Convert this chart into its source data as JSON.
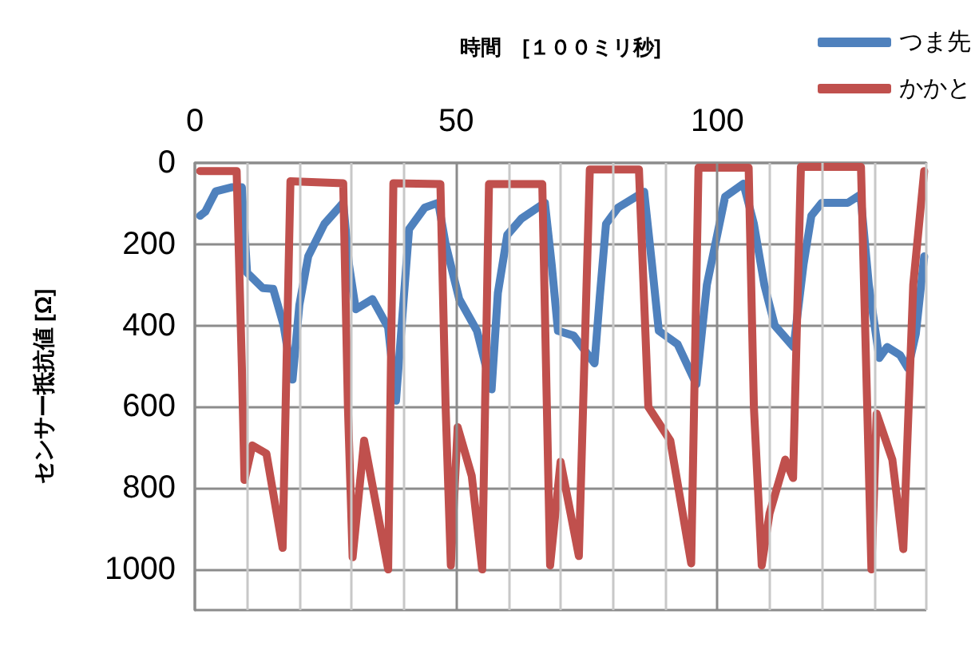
{
  "chart_data": {
    "type": "line",
    "xlabel": "時間　[１００ミリ秒]",
    "ylabel": "センサー抵抗値 [Ω]",
    "xlim": [
      0,
      140
    ],
    "ylim": [
      1100,
      0
    ],
    "xticks": [
      0,
      {
        "value": 10,
        "label": null
      },
      {
        "value": 20,
        "label": null
      },
      {
        "value": 30,
        "label": null
      },
      {
        "value": 40,
        "label": null
      },
      50,
      {
        "value": 60,
        "label": null
      },
      {
        "value": 70,
        "label": null
      },
      {
        "value": 80,
        "label": null
      },
      {
        "value": 90,
        "label": null
      },
      100,
      {
        "value": 110,
        "label": null
      },
      {
        "value": 120,
        "label": null
      },
      {
        "value": 130,
        "label": null
      },
      {
        "value": 140,
        "label": null
      }
    ],
    "yticks": [
      0,
      200,
      400,
      600,
      800,
      1000
    ],
    "grid": true,
    "legend": "top right",
    "marker": "none",
    "line_style": "solid",
    "series": [
      {
        "name": "つま先",
        "color": "#4f81bd",
        "x": [
          1,
          2,
          4,
          7,
          9,
          10,
          13,
          15,
          17,
          18.7,
          20,
          21.7,
          24.8,
          28.4,
          29.5,
          30.8,
          34,
          37,
          38.5,
          40,
          41,
          44,
          46.6,
          48,
          50.6,
          54,
          56.8,
          58,
          59.8,
          62.5,
          67,
          68.3,
          69.5,
          72.5,
          76.5,
          77.5,
          78.7,
          81,
          86,
          87.5,
          88.8,
          92.4,
          96,
          98,
          101.5,
          105,
          107,
          109,
          111,
          114.6,
          116.5,
          118,
          120,
          125,
          127.4,
          129,
          131,
          132.5,
          135,
          136.5,
          138,
          139.6
        ],
        "values": [
          130,
          120,
          70,
          60,
          60,
          270,
          308,
          310,
          400,
          533,
          350,
          230,
          150,
          98,
          250,
          360,
          335,
          405,
          585,
          330,
          163,
          110,
          98,
          200,
          335,
          413,
          557,
          320,
          177,
          137,
          98,
          250,
          413,
          425,
          493,
          330,
          150,
          110,
          71,
          250,
          413,
          446,
          545,
          300,
          83,
          51,
          150,
          300,
          400,
          453,
          250,
          130,
          98,
          98,
          78,
          300,
          480,
          453,
          473,
          505,
          420,
          230
        ]
      },
      {
        "name": "かかと",
        "color": "#c0504d",
        "x": [
          1,
          8,
          9,
          9.5,
          11,
          13.7,
          16.8,
          18.3,
          28.4,
          29.3,
          30.2,
          32.4,
          37,
          38,
          47,
          48,
          49,
          50.3,
          53,
          55,
          56.3,
          66.5,
          68,
          70,
          73.5,
          75.6,
          85,
          86.8,
          91,
          95,
          96.4,
          106,
          107,
          108.5,
          110,
          113,
          114.5,
          116,
          117,
          127.5,
          129.5,
          130.5,
          133.5,
          135.6,
          137.5,
          139.6
        ],
        "values": [
          20,
          20,
          500,
          780,
          695,
          715,
          947,
          45,
          50,
          600,
          970,
          683,
          1000,
          50,
          52,
          600,
          990,
          650,
          770,
          1000,
          52,
          52,
          990,
          735,
          967,
          16,
          16,
          600,
          683,
          985,
          12,
          12,
          600,
          990,
          862,
          730,
          775,
          10,
          10,
          10,
          1000,
          617,
          730,
          950,
          300,
          20
        ]
      }
    ]
  }
}
